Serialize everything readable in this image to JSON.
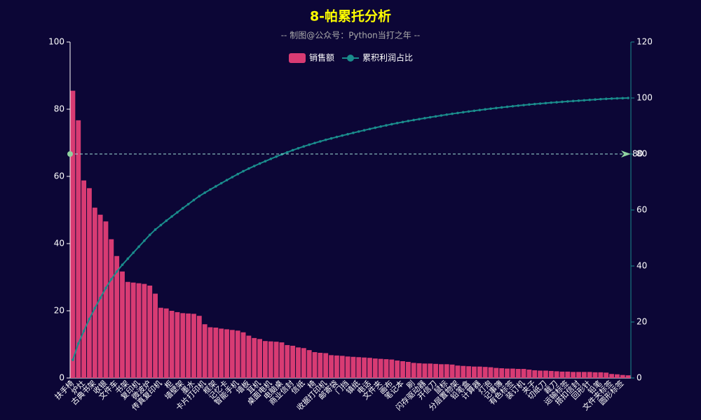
{
  "chart_data": {
    "type": "bar_line",
    "title": "8-帕累托分析",
    "subtitle": "-- 制图@公众号：Python当打之年 --",
    "categories": [
      "扶手椅",
      null,
      "炉灶",
      null,
      "古典书架",
      null,
      "收银",
      null,
      "文件车",
      null,
      "书架",
      null,
      "复印机",
      null,
      "微波炉",
      null,
      "传真复印机",
      null,
      "柜",
      null,
      "墙壁架",
      null,
      "墨水",
      null,
      "卡片打印机",
      null,
      "框架",
      null,
      "记忆卡",
      null,
      "智能手机",
      null,
      "墙板",
      null,
      "耳机",
      null,
      "桌面电机",
      null,
      "电脑桌",
      null,
      "商业信封",
      null,
      "信纸",
      null,
      "椅",
      null,
      "收据打印机",
      null,
      "邮寄袋",
      null,
      "门挡",
      null,
      "镇纸",
      null,
      "电话",
      null,
      "文件夹",
      null,
      "画布",
      null,
      "笔记本",
      null,
      "刷",
      null,
      "闪存驱动器",
      null,
      "开信刀",
      null,
      "鼠标",
      null,
      "分层置物架",
      null,
      "铅笔盒",
      null,
      "计算器",
      null,
      "灯泡",
      null,
      "记事簿",
      null,
      "有色标签",
      null,
      "装订机",
      null,
      "夹子",
      null,
      "切纸刀",
      null,
      "裁刀",
      null,
      "运输标签",
      null,
      "搭扣信封",
      null,
      "回形针",
      null,
      "铅笔",
      null,
      "文件夹标签",
      null,
      "圆形标签",
      null
    ],
    "series": [
      {
        "name": "销售额",
        "color": "#d83b73",
        "axis": "y",
        "values": [
          85.5,
          76.7,
          58.8,
          56.5,
          50.7,
          48.6,
          46.6,
          41.3,
          36.3,
          31.7,
          28.6,
          28.4,
          28.2,
          28.0,
          27.5,
          25.1,
          20.9,
          20.7,
          20.0,
          19.6,
          19.3,
          19.2,
          19.1,
          18.5,
          16.0,
          15.1,
          15.0,
          14.7,
          14.5,
          14.3,
          14.1,
          13.6,
          12.6,
          11.9,
          11.6,
          11.0,
          10.9,
          10.8,
          10.6,
          9.8,
          9.6,
          9.1,
          8.9,
          8.3,
          7.7,
          7.5,
          7.4,
          6.8,
          6.7,
          6.6,
          6.4,
          6.3,
          6.2,
          6.1,
          6.0,
          5.8,
          5.7,
          5.6,
          5.5,
          5.2,
          5.0,
          4.8,
          4.5,
          4.4,
          4.3,
          4.3,
          4.2,
          4.1,
          4.1,
          4.0,
          3.7,
          3.6,
          3.5,
          3.4,
          3.4,
          3.3,
          3.2,
          3.0,
          2.9,
          2.8,
          2.8,
          2.7,
          2.7,
          2.5,
          2.3,
          2.2,
          2.2,
          2.1,
          2.0,
          1.9,
          1.9,
          1.8,
          1.8,
          1.8,
          1.8,
          1.7,
          1.7,
          1.6,
          1.2,
          1.1,
          0.9,
          0.8
        ]
      },
      {
        "name": "累积利润占比",
        "color": "#1a8c8c",
        "axis": "y2",
        "values": [
          6.49,
          12.31,
          16.77,
          21.06,
          24.91,
          28.6,
          32.13,
          35.27,
          38.02,
          40.43,
          42.6,
          44.75,
          46.89,
          49.02,
          51.1,
          53.01,
          54.6,
          56.17,
          57.68,
          59.17,
          60.64,
          62.09,
          63.54,
          64.95,
          66.16,
          67.31,
          68.45,
          69.56,
          70.66,
          71.75,
          72.82,
          73.85,
          74.8,
          75.71,
          76.59,
          77.42,
          78.25,
          79.07,
          79.87,
          80.62,
          81.35,
          82.04,
          82.71,
          83.34,
          83.93,
          84.5,
          85.06,
          85.57,
          86.08,
          86.58,
          87.07,
          87.55,
          88.02,
          88.48,
          88.94,
          89.38,
          89.81,
          90.23,
          90.65,
          91.04,
          91.42,
          91.79,
          92.13,
          92.46,
          92.79,
          93.12,
          93.44,
          93.75,
          94.06,
          94.36,
          94.64,
          94.92,
          95.18,
          95.44,
          95.7,
          95.95,
          96.19,
          96.42,
          96.64,
          96.85,
          97.06,
          97.27,
          97.47,
          97.66,
          97.84,
          98.0,
          98.17,
          98.33,
          98.48,
          98.63,
          98.77,
          98.91,
          99.04,
          99.18,
          99.32,
          99.45,
          99.58,
          99.7,
          99.79,
          99.87,
          99.94,
          100
        ]
      }
    ],
    "ylim": [
      0,
      100
    ],
    "yticks": [
      0,
      20,
      40,
      60,
      80,
      100
    ],
    "y2lim": [
      0,
      120
    ],
    "y2ticks": [
      0,
      20,
      40,
      60,
      80,
      100,
      120
    ],
    "mark_line": {
      "value": 80,
      "axis": "y2"
    },
    "legend": "top"
  }
}
